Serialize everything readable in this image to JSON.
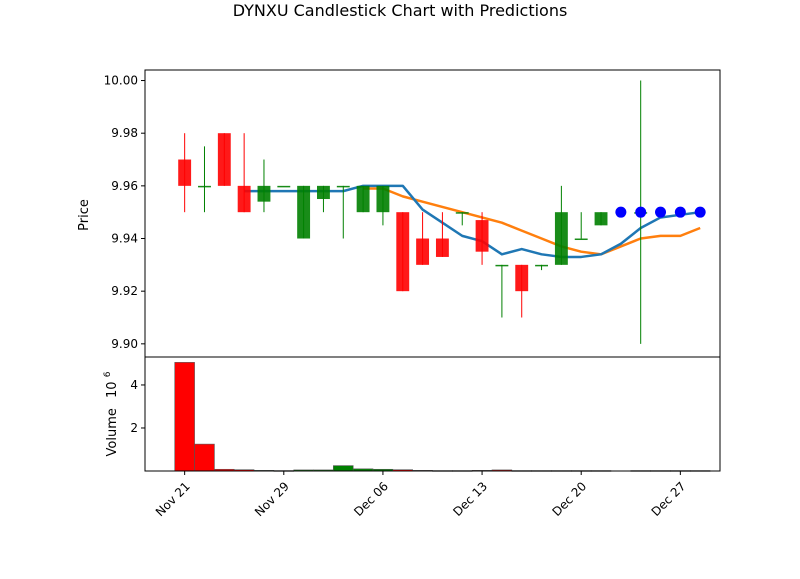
{
  "chart_data": {
    "type": "candlestick",
    "title": "DYNXU Candlestick Chart with Predictions",
    "price_panel": {
      "ylabel": "Price",
      "ylim": [
        9.895,
        10.004
      ],
      "yticks": [
        "9.90",
        "9.92",
        "9.94",
        "9.96",
        "9.98",
        "10.00"
      ],
      "ytick_values": [
        9.9,
        9.92,
        9.94,
        9.96,
        9.98,
        10.0
      ],
      "up_color": "#008000",
      "down_color": "#ff0000",
      "candles": [
        {
          "date": "Nov 21",
          "open": 9.97,
          "high": 9.98,
          "low": 9.95,
          "close": 9.96
        },
        {
          "date": "Nov 22",
          "open": 9.96,
          "high": 9.975,
          "low": 9.95,
          "close": 9.96
        },
        {
          "date": "Nov 23",
          "open": 9.98,
          "high": 9.98,
          "low": 9.96,
          "close": 9.96
        },
        {
          "date": "Nov 24",
          "open": 9.96,
          "high": 9.98,
          "low": 9.95,
          "close": 9.95
        },
        {
          "date": "Nov 25",
          "open": 9.954,
          "high": 9.97,
          "low": 9.95,
          "close": 9.96
        },
        {
          "date": "Nov 26",
          "open": 9.96,
          "high": 9.96,
          "low": 9.96,
          "close": 9.96
        },
        {
          "date": "Nov 28",
          "open": 9.94,
          "high": 9.96,
          "low": 9.94,
          "close": 9.96
        },
        {
          "date": "Nov 29",
          "open": 9.955,
          "high": 9.96,
          "low": 9.95,
          "close": 9.96
        },
        {
          "date": "Dec 02",
          "open": 9.96,
          "high": 9.96,
          "low": 9.94,
          "close": 9.96
        },
        {
          "date": "Dec 03",
          "open": 9.95,
          "high": 9.96,
          "low": 9.95,
          "close": 9.96
        },
        {
          "date": "Dec 04",
          "open": 9.95,
          "high": 9.96,
          "low": 9.945,
          "close": 9.96
        },
        {
          "date": "Dec 05",
          "open": 9.95,
          "high": 9.95,
          "low": 9.92,
          "close": 9.92
        },
        {
          "date": "Dec 06",
          "open": 9.94,
          "high": 9.95,
          "low": 9.93,
          "close": 9.93
        },
        {
          "date": "Dec 09",
          "open": 9.94,
          "high": 9.95,
          "low": 9.933,
          "close": 9.933
        },
        {
          "date": "Dec 10",
          "open": 9.95,
          "high": 9.95,
          "low": 9.945,
          "close": 9.95
        },
        {
          "date": "Dec 11",
          "open": 9.947,
          "high": 9.95,
          "low": 9.93,
          "close": 9.935
        },
        {
          "date": "Dec 12",
          "open": 9.93,
          "high": 9.93,
          "low": 9.91,
          "close": 9.93
        },
        {
          "date": "Dec 13",
          "open": 9.93,
          "high": 9.93,
          "low": 9.91,
          "close": 9.92
        },
        {
          "date": "Dec 16",
          "open": 9.93,
          "high": 9.93,
          "low": 9.928,
          "close": 9.93
        },
        {
          "date": "Dec 17",
          "open": 9.93,
          "high": 9.96,
          "low": 9.93,
          "close": 9.95
        },
        {
          "date": "Dec 18",
          "open": 9.94,
          "high": 9.95,
          "low": 9.94,
          "close": 9.94
        },
        {
          "date": "Dec 19",
          "open": 9.945,
          "high": 9.95,
          "low": 9.945,
          "close": 9.95
        },
        {
          "date": "Dec 24",
          "open": 9.95,
          "high": 10.0,
          "low": 9.9,
          "close": 9.95
        }
      ],
      "candle_x_days": [
        0,
        1,
        2,
        3,
        4,
        5,
        6,
        7,
        8,
        9,
        10,
        11,
        12,
        13,
        14,
        15,
        16,
        17,
        18,
        19,
        20,
        21,
        23
      ],
      "line_blue": {
        "color": "#1f77b4",
        "x_days": [
          3,
          4,
          5,
          6,
          7,
          8,
          9,
          10,
          11,
          12,
          13,
          14,
          15,
          16,
          17,
          18,
          19,
          20,
          21,
          22,
          23,
          24,
          25,
          26
        ],
        "values": [
          9.958,
          9.958,
          9.958,
          9.958,
          9.958,
          9.958,
          9.96,
          9.96,
          9.96,
          9.951,
          9.946,
          9.941,
          9.939,
          9.934,
          9.936,
          9.934,
          9.933,
          9.933,
          9.934,
          9.938,
          9.944,
          9.948,
          9.949,
          9.95
        ]
      },
      "line_orange": {
        "color": "#ff7f0e",
        "x_days": [
          9,
          10,
          11,
          12,
          13,
          14,
          15,
          16,
          17,
          18,
          19,
          20,
          21,
          22,
          23,
          24,
          25,
          26
        ],
        "values": [
          9.959,
          9.959,
          9.956,
          9.954,
          9.952,
          9.95,
          9.948,
          9.946,
          9.943,
          9.94,
          9.937,
          9.935,
          9.934,
          9.937,
          9.94,
          9.941,
          9.941,
          9.944
        ]
      },
      "prediction_points": {
        "color": "#0000ff",
        "x_days": [
          22,
          23,
          24,
          25,
          26
        ],
        "values": [
          9.95,
          9.95,
          9.95,
          9.95,
          9.95
        ]
      }
    },
    "volume_panel": {
      "ylabel": "Volume",
      "exponent_label": "10",
      "exponent_power": "6",
      "ylim": [
        0,
        5.3
      ],
      "yticks": [
        "2",
        "4"
      ],
      "ytick_values": [
        2,
        4
      ],
      "bar_x_days": [
        0,
        1,
        2,
        3,
        4,
        5,
        6,
        7,
        8,
        9,
        10,
        11,
        12,
        13,
        14,
        15,
        16,
        17,
        18,
        19,
        20,
        21,
        23,
        24,
        25,
        26
      ],
      "values_millions": [
        5.05,
        1.25,
        0.08,
        0.06,
        0.03,
        0.02,
        0.05,
        0.05,
        0.25,
        0.1,
        0.08,
        0.06,
        0.03,
        0.02,
        0.02,
        0.03,
        0.05,
        0.02,
        0.02,
        0.02,
        0.02,
        0.02,
        0.02,
        0.02,
        0.02,
        0.02
      ],
      "colors": [
        "red",
        "red",
        "red",
        "red",
        "green",
        "red",
        "green",
        "green",
        "green",
        "green",
        "green",
        "red",
        "red",
        "red",
        "red",
        "red",
        "red",
        "red",
        "red",
        "green",
        "red",
        "green",
        "red",
        "red",
        "red",
        "green"
      ]
    },
    "x_axis": {
      "xlim_days": [
        -2,
        27
      ],
      "ticks": [
        {
          "label": "Nov 21",
          "day": 0
        },
        {
          "label": "Nov 29",
          "day": 5
        },
        {
          "label": "Dec 06",
          "day": 10
        },
        {
          "label": "Dec 13",
          "day": 15
        },
        {
          "label": "Dec 20",
          "day": 20
        },
        {
          "label": "Dec 27",
          "day": 25
        }
      ]
    }
  }
}
